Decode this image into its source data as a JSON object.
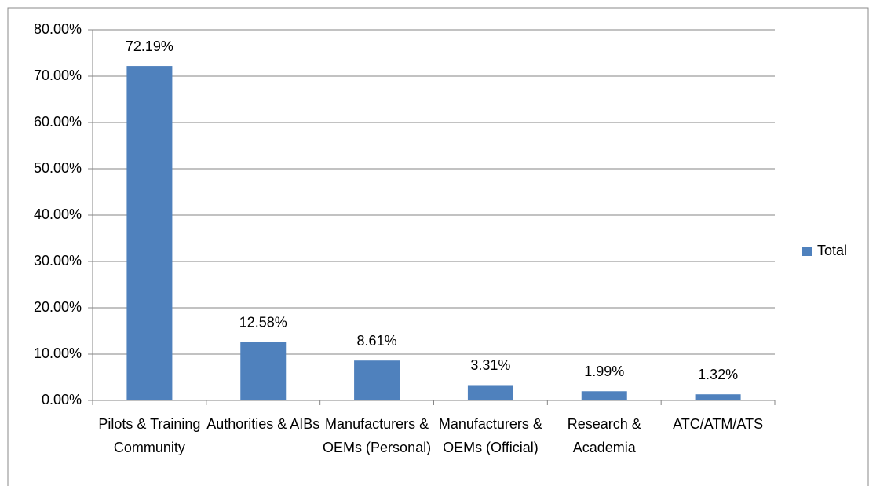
{
  "chart_data": {
    "type": "bar",
    "categories": [
      "Pilots & Training Community",
      "Authorities & AIBs",
      "Manufacturers & OEMs (Personal)",
      "Manufacturers & OEMs (Official)",
      "Research & Academia",
      "ATC/ATM/ATS"
    ],
    "series": [
      {
        "name": "Total",
        "color": "#4f81bd",
        "values": [
          72.19,
          12.58,
          8.61,
          3.31,
          1.99,
          1.32
        ],
        "value_labels": [
          "72.19%",
          "12.58%",
          "8.61%",
          "3.31%",
          "1.99%",
          "1.32%"
        ]
      }
    ],
    "ylim": [
      0,
      80
    ],
    "yticks": [
      {
        "value": 0,
        "label": "0.00%"
      },
      {
        "value": 10,
        "label": "10.00%"
      },
      {
        "value": 20,
        "label": "20.00%"
      },
      {
        "value": 30,
        "label": "30.00%"
      },
      {
        "value": 40,
        "label": "40.00%"
      },
      {
        "value": 50,
        "label": "50.00%"
      },
      {
        "value": 60,
        "label": "60.00%"
      },
      {
        "value": 70,
        "label": "70.00%"
      },
      {
        "value": 80,
        "label": "80.00%"
      }
    ],
    "grid": true,
    "legend": "right"
  }
}
